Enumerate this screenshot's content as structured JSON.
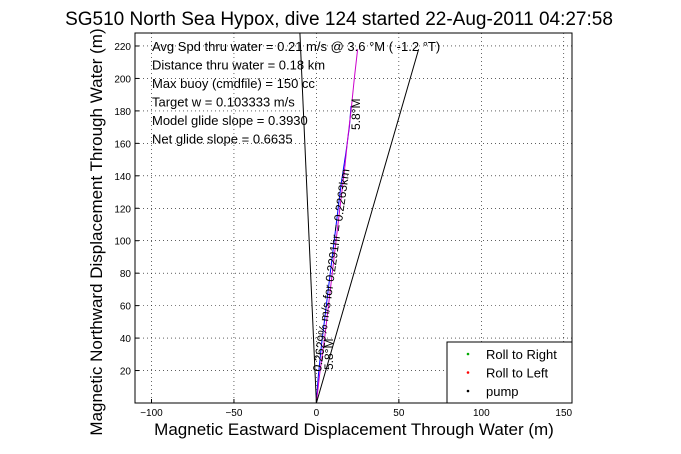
{
  "chart_data": {
    "type": "line",
    "title": "SG510 North Sea Hypox, dive 124 started 22-Aug-2011 04:27:58",
    "xlabel": "Magnetic Eastward Displacement Through Water (m)",
    "ylabel": "Magnetic Northward Displacement Through Water (m)",
    "xlim": [
      -110,
      155
    ],
    "ylim": [
      0,
      228
    ],
    "xticks": [
      -100,
      -50,
      0,
      50,
      100,
      150
    ],
    "yticks": [
      20,
      40,
      60,
      80,
      100,
      120,
      140,
      160,
      180,
      200,
      220
    ],
    "grid": true,
    "info_lines": [
      "Avg Spd thru water =  0.21 m/s @   3.6  °M ( -1.2 °T)",
      "Distance thru water =  0.18 km",
      "Max buoy (cmdfile) = 150 cc",
      "Target w = 0.103333 m/s",
      "Model glide slope = 0.3930",
      "Net glide slope = 0.6635"
    ],
    "annotations": [
      "0.2629% m/s for 0.2291hr = 0.2263km",
      "5.8°M",
      "5.8°M"
    ],
    "legend": {
      "placement": "bottom-right",
      "entries": [
        {
          "label": "Roll to Right",
          "color": "#00aa00"
        },
        {
          "label": "Roll to Left",
          "color": "#ff0000"
        },
        {
          "label": "pump",
          "color": "#000000"
        }
      ]
    },
    "series": [
      {
        "color": "#0000ff",
        "x": [
          0,
          1,
          3,
          6,
          9,
          12,
          15,
          18,
          20,
          21
        ],
        "y": [
          0,
          15,
          35,
          60,
          85,
          110,
          135,
          155,
          170,
          183
        ]
      },
      {
        "color": "#cc00cc",
        "x": [
          0,
          2,
          5,
          8,
          11,
          14,
          17,
          19,
          21,
          23,
          25
        ],
        "y": [
          0,
          18,
          40,
          66,
          92,
          118,
          143,
          163,
          180,
          200,
          218
        ]
      },
      {
        "color": "#000000",
        "x": [
          0,
          -10
        ],
        "y": [
          0,
          228
        ]
      },
      {
        "color": "#000000",
        "x": [
          0,
          62
        ],
        "y": [
          0,
          218
        ]
      }
    ]
  }
}
